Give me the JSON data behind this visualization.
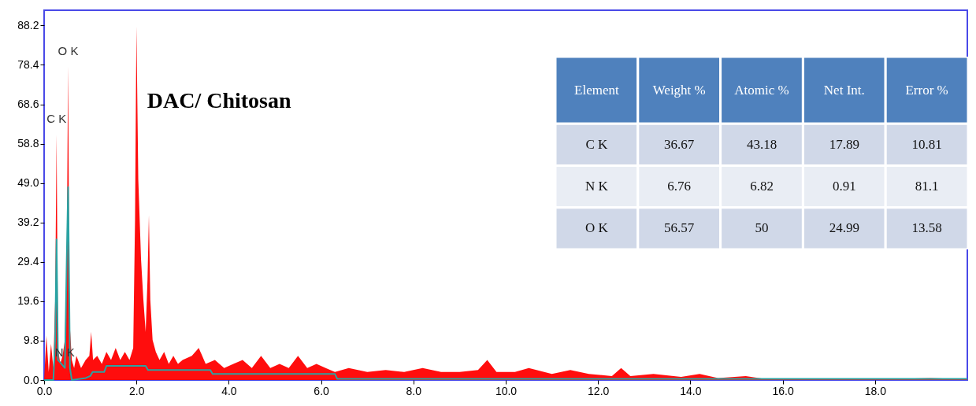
{
  "chart_data": [
    {
      "type": "area",
      "title": "DAC/ Chitosan",
      "xlim": [
        0,
        20
      ],
      "ylim": [
        0,
        92
      ],
      "xticks": [
        {
          "value": 0,
          "label": "0.0"
        },
        {
          "value": 2,
          "label": "2.0"
        },
        {
          "value": 4,
          "label": "4.0"
        },
        {
          "value": 6,
          "label": "6.0"
        },
        {
          "value": 8,
          "label": "8.0"
        },
        {
          "value": 10,
          "label": "10.0"
        },
        {
          "value": 12,
          "label": "12.0"
        },
        {
          "value": 14,
          "label": "14.0"
        },
        {
          "value": 16,
          "label": "16.0"
        },
        {
          "value": 18,
          "label": "18.0"
        }
      ],
      "yticks": [
        {
          "value": 0,
          "label": "0.0"
        },
        9.8,
        19.6,
        29.4,
        39.2,
        {
          "value": 49,
          "label": "49.0"
        },
        58.8,
        68.6,
        78.4,
        88.2
      ],
      "grid": false,
      "series": [
        {
          "type": "area",
          "color": "#ff0000",
          "x": [
            0,
            0.05,
            0.1,
            0.15,
            0.2,
            0.24,
            0.27,
            0.3,
            0.35,
            0.4,
            0.45,
            0.49,
            0.52,
            0.55,
            0.6,
            0.65,
            0.7,
            0.8,
            0.9,
            0.98,
            1.02,
            1.06,
            1.15,
            1.25,
            1.35,
            1.45,
            1.55,
            1.65,
            1.75,
            1.85,
            1.93,
            1.97,
            2.0,
            2.04,
            2.1,
            2.15,
            2.2,
            2.24,
            2.27,
            2.3,
            2.35,
            2.42,
            2.5,
            2.6,
            2.7,
            2.8,
            2.9,
            3.0,
            3.2,
            3.35,
            3.5,
            3.7,
            3.9,
            4.1,
            4.3,
            4.5,
            4.7,
            4.9,
            5.1,
            5.3,
            5.5,
            5.7,
            5.9,
            6.1,
            6.3,
            6.6,
            7.0,
            7.4,
            7.8,
            8.2,
            8.6,
            9.0,
            9.4,
            9.6,
            9.8,
            10.2,
            10.5,
            11.0,
            11.4,
            11.8,
            12.3,
            12.5,
            12.7,
            13.2,
            13.8,
            14.2,
            14.6,
            15.2,
            15.6,
            16.5,
            17.5,
            18.5,
            19.2,
            20
          ],
          "values": [
            0,
            11,
            2,
            9,
            3,
            20,
            61,
            8,
            4,
            6,
            10,
            30,
            78,
            15,
            5,
            3,
            6,
            3,
            5,
            6,
            12,
            5,
            6,
            4,
            7,
            5,
            8,
            5,
            7,
            5,
            8,
            40,
            88,
            50,
            30,
            20,
            12,
            25,
            41,
            20,
            10,
            7,
            5,
            7,
            4,
            6,
            4,
            5,
            6,
            8,
            4,
            5,
            3,
            4,
            5,
            3,
            6,
            3,
            4,
            3,
            6,
            3,
            4,
            3,
            2,
            3,
            2,
            2.5,
            2,
            3,
            2,
            2,
            2.5,
            5,
            2,
            2,
            3,
            1.5,
            2.5,
            1.5,
            1,
            3,
            1,
            1.5,
            0.8,
            1.5,
            0.5,
            1,
            0.3,
            0.3,
            0.3,
            0.3,
            0.5,
            0.2
          ]
        },
        {
          "type": "line",
          "color": "#2aa3a3",
          "x": [
            0,
            0.2,
            0.24,
            0.27,
            0.3,
            0.45,
            0.49,
            0.52,
            0.56,
            0.6,
            0.9,
            1.0,
            1.05,
            1.3,
            1.35,
            2.2,
            2.25,
            3.6,
            3.65,
            6.3,
            6.35,
            20
          ],
          "values": [
            0,
            0,
            10,
            35,
            5,
            3,
            30,
            48,
            3,
            0,
            0.5,
            1,
            2,
            2,
            3.5,
            3.5,
            2.5,
            2.5,
            1.5,
            1.5,
            0.3,
            0.3
          ]
        }
      ],
      "annotations": [
        {
          "text": "C K",
          "x": 0.27,
          "y": 61
        },
        {
          "text": "O K",
          "x": 0.52,
          "y": 78
        },
        {
          "text": "N K",
          "x": 0.45,
          "y": 3
        }
      ]
    },
    {
      "type": "heatmap",
      "ylabel": "Element",
      "data_labels": true,
      "categories": [
        "Weight %",
        "Atomic %",
        "Net Int.",
        "Error %"
      ],
      "y_categories": [
        "C K",
        "N K",
        "O K"
      ],
      "cells": [
        [
          36.67,
          43.18,
          17.89,
          10.81
        ],
        [
          6.76,
          6.82,
          0.91,
          81.1
        ],
        [
          56.57,
          50,
          24.99,
          13.58
        ]
      ]
    }
  ]
}
